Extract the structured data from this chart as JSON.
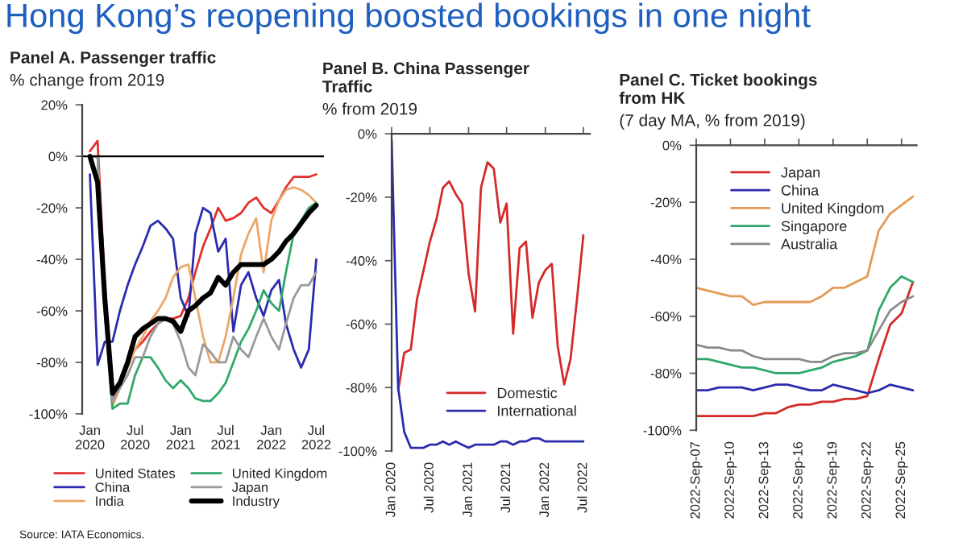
{
  "chart_data": [
    {
      "type": "line",
      "title": "Panel A. Passenger traffic",
      "subtitle": "% change from 2019",
      "annotations": [
        "Hong Kong’s reopening boosted bookings in one night",
        "Source: IATA Economics."
      ],
      "x": [
        "2020-01",
        "2020-02",
        "2020-03",
        "2020-04",
        "2020-05",
        "2020-06",
        "2020-07",
        "2020-08",
        "2020-09",
        "2020-10",
        "2020-11",
        "2020-12",
        "2021-01",
        "2021-02",
        "2021-03",
        "2021-04",
        "2021-05",
        "2021-06",
        "2021-07",
        "2021-08",
        "2021-09",
        "2021-10",
        "2021-11",
        "2021-12",
        "2022-01",
        "2022-02",
        "2022-03",
        "2022-04",
        "2022-05",
        "2022-06",
        "2022-07"
      ],
      "series": [
        {
          "name": "United States",
          "color": "#e0302c",
          "values": [
            2,
            6,
            -50,
            -95,
            -88,
            -80,
            -75,
            -72,
            -68,
            -65,
            -63,
            -63,
            -62,
            -55,
            -45,
            -35,
            -28,
            -20,
            -25,
            -24,
            -22,
            -18,
            -16,
            -20,
            -22,
            -17,
            -12,
            -8,
            -8,
            -8,
            -7
          ]
        },
        {
          "name": "China",
          "color": "#2b2bb0",
          "values": [
            -7,
            -81,
            -72,
            -72,
            -60,
            -50,
            -42,
            -35,
            -27,
            -25,
            -28,
            -32,
            -55,
            -62,
            -30,
            -20,
            -22,
            -37,
            -32,
            -68,
            -50,
            -45,
            -55,
            -62,
            -52,
            -48,
            -65,
            -75,
            -82,
            -75,
            -40
          ]
        },
        {
          "name": "India",
          "color": "#eba66a",
          "values": [
            0,
            0,
            -60,
            -97,
            -90,
            -82,
            -75,
            -70,
            -64,
            -60,
            -55,
            -47,
            -43,
            -42,
            -55,
            -70,
            -80,
            -80,
            -70,
            -55,
            -38,
            -30,
            -24,
            -45,
            -25,
            -17,
            -13,
            -12,
            -13,
            -15,
            -18
          ]
        },
        {
          "name": "United Kingdom",
          "color": "#2fa86a",
          "values": [
            0,
            0,
            -60,
            -98,
            -96,
            -96,
            -85,
            -78,
            -78,
            -82,
            -87,
            -90,
            -87,
            -90,
            -94,
            -95,
            -95,
            -92,
            -88,
            -80,
            -72,
            -67,
            -60,
            -52,
            -57,
            -60,
            -45,
            -30,
            -25,
            -20,
            -18
          ]
        },
        {
          "name": "Japan",
          "color": "#9a9a9a",
          "values": [
            0,
            0,
            -55,
            -95,
            -90,
            -85,
            -78,
            -78,
            -70,
            -65,
            -63,
            -65,
            -72,
            -82,
            -85,
            -73,
            -76,
            -80,
            -80,
            -70,
            -75,
            -78,
            -70,
            -63,
            -70,
            -75,
            -65,
            -55,
            -50,
            -50,
            -45
          ]
        },
        {
          "name": "Industry",
          "color": "#000000",
          "values": [
            0,
            -10,
            -55,
            -92,
            -88,
            -80,
            -70,
            -67,
            -65,
            -63,
            -63,
            -64,
            -68,
            -60,
            -58,
            -55,
            -53,
            -47,
            -50,
            -45,
            -42,
            -42,
            -42,
            -42,
            -40,
            -37,
            -33,
            -30,
            -26,
            -22,
            -19
          ]
        }
      ],
      "xlim": [
        "2019-12",
        "2022-08"
      ],
      "xticks": [
        {
          "value": "2020-01",
          "label": "Jan\n2020"
        },
        {
          "value": "2020-07",
          "label": "Jul\n2020"
        },
        {
          "value": "2021-01",
          "label": "Jan\n2021"
        },
        {
          "value": "2021-07",
          "label": "Jul\n2021"
        },
        {
          "value": "2022-01",
          "label": "Jan\n2022"
        },
        {
          "value": "2022-07",
          "label": "Jul\n2022"
        }
      ],
      "ylim": [
        -100,
        20
      ],
      "yticks": [
        {
          "value": -100,
          "label": "-100%"
        },
        {
          "value": -80,
          "label": "-80%"
        },
        {
          "value": -60,
          "label": "-60%"
        },
        {
          "value": -40,
          "label": "-40%"
        },
        {
          "value": -20,
          "label": "-20%"
        },
        {
          "value": 0,
          "label": "0%"
        },
        {
          "value": 20,
          "label": "20%"
        }
      ],
      "ref_lines": [
        {
          "axis": "y",
          "value": 0,
          "color": "#000000"
        }
      ],
      "legend": "bottom",
      "grid": false
    },
    {
      "type": "line",
      "title": "Panel B. China Passenger\nTraffic",
      "subtitle": "% from 2019",
      "x": [
        "2020-01",
        "2020-02",
        "2020-03",
        "2020-04",
        "2020-05",
        "2020-06",
        "2020-07",
        "2020-08",
        "2020-09",
        "2020-10",
        "2020-11",
        "2020-12",
        "2021-01",
        "2021-02",
        "2021-03",
        "2021-04",
        "2021-05",
        "2021-06",
        "2021-07",
        "2021-08",
        "2021-09",
        "2021-10",
        "2021-11",
        "2021-12",
        "2022-01",
        "2022-02",
        "2022-03",
        "2022-04",
        "2022-05",
        "2022-06",
        "2022-07"
      ],
      "series": [
        {
          "name": "Domestic",
          "color": "#d42a2a",
          "values": [
            null,
            -81,
            -69,
            -68,
            -52,
            -43,
            -34,
            -27,
            -17,
            -15,
            -19,
            -22,
            -44,
            -56,
            -17,
            -9,
            -11,
            -28,
            -22,
            -63,
            -36,
            -34,
            -58,
            -47,
            -43,
            -41,
            -67,
            -79,
            -71,
            -52,
            -32
          ]
        },
        {
          "name": "International",
          "color": "#2b2bb0",
          "values": [
            -2,
            -80,
            -94,
            -99,
            -99,
            -99,
            -98,
            -98,
            -97,
            -98,
            -97,
            -98,
            -99,
            -98,
            -98,
            -98,
            -98,
            -97,
            -97,
            -98,
            -97,
            -97,
            -96,
            -96,
            -97,
            -97,
            -97,
            -97,
            -97,
            -97,
            -97
          ]
        }
      ],
      "xlim": [
        "2020-01",
        "2022-08"
      ],
      "xticks": [
        {
          "value": "2020-01",
          "label": "Jan 2020"
        },
        {
          "value": "2020-07",
          "label": "Jul 2020"
        },
        {
          "value": "2021-01",
          "label": "Jan 2021"
        },
        {
          "value": "2021-07",
          "label": "Jul 2021"
        },
        {
          "value": "2022-01",
          "label": "Jan 2022"
        },
        {
          "value": "2022-07",
          "label": "Jul 2022"
        }
      ],
      "ylim": [
        -100,
        0
      ],
      "yticks": [
        {
          "value": -100,
          "label": "-100%"
        },
        {
          "value": -80,
          "label": "-80%"
        },
        {
          "value": -60,
          "label": "-60%"
        },
        {
          "value": -40,
          "label": "-40%"
        },
        {
          "value": -20,
          "label": "-20%"
        },
        {
          "value": 0,
          "label": "0%"
        }
      ],
      "legend": "bottom",
      "grid": false
    },
    {
      "type": "line",
      "title": "Panel C. Ticket bookings\nfrom HK",
      "subtitle": "(7 day MA, % from 2019)",
      "x": [
        "2022-09-07",
        "2022-09-08",
        "2022-09-09",
        "2022-09-10",
        "2022-09-11",
        "2022-09-12",
        "2022-09-13",
        "2022-09-14",
        "2022-09-15",
        "2022-09-16",
        "2022-09-17",
        "2022-09-18",
        "2022-09-19",
        "2022-09-20",
        "2022-09-21",
        "2022-09-22",
        "2022-09-23",
        "2022-09-24",
        "2022-09-25",
        "2022-09-26"
      ],
      "series": [
        {
          "name": "Japan",
          "color": "#d42a2a",
          "values": [
            -95,
            -95,
            -95,
            -95,
            -95,
            -95,
            -94,
            -94,
            -92,
            -91,
            -91,
            -90,
            -90,
            -89,
            -89,
            -88,
            -75,
            -63,
            -59,
            -48
          ]
        },
        {
          "name": "China",
          "color": "#2b2bb0",
          "values": [
            -86,
            -86,
            -85,
            -85,
            -85,
            -86,
            -85,
            -84,
            -84,
            -85,
            -86,
            -86,
            -84,
            -85,
            -86,
            -87,
            -86,
            -84,
            -85,
            -86
          ]
        },
        {
          "name": "United Kingdom",
          "color": "#e39a55",
          "values": [
            -50,
            -51,
            -52,
            -53,
            -53,
            -56,
            -55,
            -55,
            -55,
            -55,
            -55,
            -53,
            -50,
            -50,
            -48,
            -46,
            -30,
            -24,
            -21,
            -18
          ]
        },
        {
          "name": "Singapore",
          "color": "#2fa86a",
          "values": [
            -75,
            -75,
            -76,
            -77,
            -78,
            -78,
            -79,
            -80,
            -80,
            -80,
            -79,
            -78,
            -76,
            -75,
            -74,
            -72,
            -58,
            -50,
            -46,
            -48
          ]
        },
        {
          "name": "Australia",
          "color": "#8a8a8a",
          "values": [
            -70,
            -71,
            -71,
            -72,
            -72,
            -74,
            -75,
            -75,
            -75,
            -75,
            -76,
            -76,
            -74,
            -73,
            -73,
            -72,
            -65,
            -58,
            -55,
            -53
          ]
        }
      ],
      "xlim": [
        "2022-09-07",
        "2022-09-26T08:00"
      ],
      "xticks": [
        {
          "value": "2022-09-07",
          "label": "2022-Sep-07"
        },
        {
          "value": "2022-09-10",
          "label": "2022-Sep-10"
        },
        {
          "value": "2022-09-13",
          "label": "2022-Sep-13"
        },
        {
          "value": "2022-09-16",
          "label": "2022-Sep-16"
        },
        {
          "value": "2022-09-19",
          "label": "2022-Sep-19"
        },
        {
          "value": "2022-09-22",
          "label": "2022-Sep-22"
        },
        {
          "value": "2022-09-25",
          "label": "2022-Sep-25"
        }
      ],
      "ylim": [
        -100,
        0
      ],
      "yticks": [
        {
          "value": -100,
          "label": "-100%"
        },
        {
          "value": -80,
          "label": "-80%"
        },
        {
          "value": -60,
          "label": "-60%"
        },
        {
          "value": -40,
          "label": "-40%"
        },
        {
          "value": -20,
          "label": "-20%"
        },
        {
          "value": 0,
          "label": "0%"
        }
      ],
      "legend": "top left",
      "grid": false
    }
  ]
}
